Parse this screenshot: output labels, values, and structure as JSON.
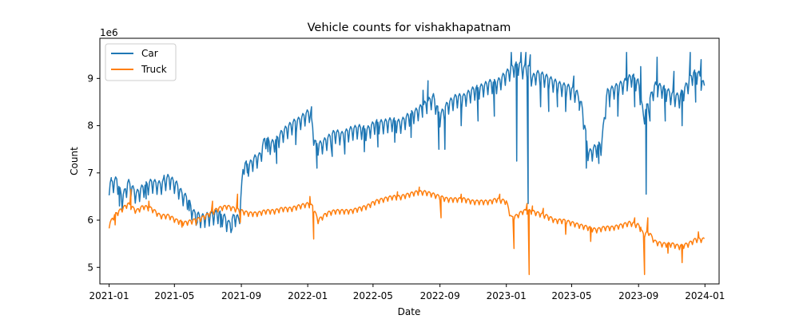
{
  "chart_data": {
    "type": "line",
    "title": "Vehicle counts for vishakhapatnam",
    "xlabel": "Date",
    "ylabel": "Count",
    "y_multiplier_label": "1e6",
    "y_multiplier": 1000000,
    "xlim": [
      "2020-12-15",
      "2024-01-27"
    ],
    "ylim": [
      4.65,
      9.85
    ],
    "grid": false,
    "legend_position": "top-left",
    "x_ticks": [
      {
        "date": "2021-01-01",
        "label": "2021-01"
      },
      {
        "date": "2021-05-01",
        "label": "2021-05"
      },
      {
        "date": "2021-09-01",
        "label": "2021-09"
      },
      {
        "date": "2022-01-01",
        "label": "2022-01"
      },
      {
        "date": "2022-05-01",
        "label": "2022-05"
      },
      {
        "date": "2022-09-01",
        "label": "2022-09"
      },
      {
        "date": "2023-01-01",
        "label": "2023-01"
      },
      {
        "date": "2023-05-01",
        "label": "2023-05"
      },
      {
        "date": "2023-09-01",
        "label": "2023-09"
      },
      {
        "date": "2024-01-01",
        "label": "2024-01"
      }
    ],
    "y_ticks": [
      {
        "value": 5,
        "label": "5"
      },
      {
        "value": 6,
        "label": "6"
      },
      {
        "value": 7,
        "label": "7"
      },
      {
        "value": 8,
        "label": "8"
      },
      {
        "value": 9,
        "label": "9"
      }
    ],
    "series": [
      {
        "name": "Car",
        "color": "#1f77b4",
        "points": [
          [
            "2021-01-01",
            6.75
          ],
          [
            "2021-01-15",
            6.85
          ],
          [
            "2021-01-25",
            6.45
          ],
          [
            "2021-02-05",
            6.8
          ],
          [
            "2021-02-20",
            6.55
          ],
          [
            "2021-03-05",
            6.7
          ],
          [
            "2021-03-20",
            6.8
          ],
          [
            "2021-04-05",
            6.75
          ],
          [
            "2021-04-20",
            6.9
          ],
          [
            "2021-05-05",
            6.75
          ],
          [
            "2021-05-15",
            6.55
          ],
          [
            "2021-05-25",
            6.45
          ],
          [
            "2021-06-05",
            6.15
          ],
          [
            "2021-06-20",
            6.05
          ],
          [
            "2021-07-05",
            6.1
          ],
          [
            "2021-07-20",
            6.15
          ],
          [
            "2021-08-01",
            6.05
          ],
          [
            "2021-08-10",
            5.9
          ],
          [
            "2021-08-20",
            6.1
          ],
          [
            "2021-08-28",
            6.0
          ],
          [
            "2021-09-05",
            7.2
          ],
          [
            "2021-09-15",
            7.15
          ],
          [
            "2021-09-25",
            7.3
          ],
          [
            "2021-10-05",
            7.35
          ],
          [
            "2021-10-15",
            7.75
          ],
          [
            "2021-10-25",
            7.6
          ],
          [
            "2021-11-05",
            7.7
          ],
          [
            "2021-11-15",
            7.85
          ],
          [
            "2021-11-25",
            7.95
          ],
          [
            "2021-12-05",
            8.05
          ],
          [
            "2021-12-15",
            8.1
          ],
          [
            "2021-12-25",
            8.2
          ],
          [
            "2022-01-05",
            8.3
          ],
          [
            "2022-01-15",
            7.6
          ],
          [
            "2022-01-25",
            7.6
          ],
          [
            "2022-02-05",
            7.7
          ],
          [
            "2022-02-20",
            7.85
          ],
          [
            "2022-03-05",
            7.8
          ],
          [
            "2022-03-20",
            7.9
          ],
          [
            "2022-04-05",
            7.95
          ],
          [
            "2022-04-20",
            7.9
          ],
          [
            "2022-05-05",
            8.05
          ],
          [
            "2022-05-20",
            8.05
          ],
          [
            "2022-06-05",
            8.1
          ],
          [
            "2022-06-20",
            8.05
          ],
          [
            "2022-07-05",
            8.2
          ],
          [
            "2022-07-20",
            8.3
          ],
          [
            "2022-08-05",
            8.45
          ],
          [
            "2022-08-20",
            8.6
          ],
          [
            "2022-09-01",
            8.2
          ],
          [
            "2022-09-15",
            8.45
          ],
          [
            "2022-10-01",
            8.6
          ],
          [
            "2022-10-15",
            8.6
          ],
          [
            "2022-11-01",
            8.75
          ],
          [
            "2022-11-15",
            8.8
          ],
          [
            "2022-12-01",
            8.9
          ],
          [
            "2022-12-15",
            8.9
          ],
          [
            "2023-01-01",
            9.1
          ],
          [
            "2023-01-15",
            9.25
          ],
          [
            "2023-01-25",
            9.3
          ],
          [
            "2023-02-01",
            9.2
          ],
          [
            "2023-02-10",
            9.25
          ],
          [
            "2023-02-18",
            9.0
          ],
          [
            "2023-02-25",
            9.1
          ],
          [
            "2023-03-10",
            9.05
          ],
          [
            "2023-03-25",
            8.95
          ],
          [
            "2023-04-10",
            8.85
          ],
          [
            "2023-04-25",
            8.8
          ],
          [
            "2023-05-10",
            8.7
          ],
          [
            "2023-05-20",
            8.4
          ],
          [
            "2023-06-01",
            7.4
          ],
          [
            "2023-06-15",
            7.55
          ],
          [
            "2023-06-25",
            7.6
          ],
          [
            "2023-07-05",
            8.7
          ],
          [
            "2023-07-20",
            8.8
          ],
          [
            "2023-08-05",
            8.9
          ],
          [
            "2023-08-20",
            9.05
          ],
          [
            "2023-09-01",
            8.9
          ],
          [
            "2023-09-10",
            8.2
          ],
          [
            "2023-09-20",
            8.5
          ],
          [
            "2023-10-01",
            8.85
          ],
          [
            "2023-10-15",
            8.8
          ],
          [
            "2023-11-01",
            8.65
          ],
          [
            "2023-11-15",
            8.6
          ],
          [
            "2023-12-01",
            8.9
          ],
          [
            "2023-12-10",
            9.1
          ],
          [
            "2023-12-20",
            9.1
          ],
          [
            "2024-01-01",
            8.8
          ]
        ],
        "spikes": [
          [
            "2021-01-05",
            6.9
          ],
          [
            "2021-01-20",
            6.3
          ],
          [
            "2021-03-10",
            6.45
          ],
          [
            "2021-04-12",
            6.95
          ],
          [
            "2021-05-28",
            6.2
          ],
          [
            "2021-06-12",
            5.95
          ],
          [
            "2021-07-25",
            5.85
          ],
          [
            "2021-08-15",
            5.82
          ],
          [
            "2021-09-12",
            7.0
          ],
          [
            "2021-10-20",
            7.45
          ],
          [
            "2021-11-05",
            7.2
          ],
          [
            "2021-12-10",
            7.6
          ],
          [
            "2022-01-08",
            8.4
          ],
          [
            "2022-01-18",
            7.1
          ],
          [
            "2022-02-15",
            7.35
          ],
          [
            "2022-03-10",
            7.4
          ],
          [
            "2022-04-15",
            7.45
          ],
          [
            "2022-05-10",
            7.55
          ],
          [
            "2022-06-10",
            7.65
          ],
          [
            "2022-07-10",
            7.75
          ],
          [
            "2022-08-01",
            8.75
          ],
          [
            "2022-08-10",
            8.95
          ],
          [
            "2022-08-30",
            7.5
          ],
          [
            "2022-09-10",
            7.5
          ],
          [
            "2022-10-10",
            8.0
          ],
          [
            "2022-11-10",
            8.1
          ],
          [
            "2022-12-10",
            8.2
          ],
          [
            "2023-01-10",
            9.55
          ],
          [
            "2023-01-20",
            7.25
          ],
          [
            "2023-01-28",
            9.55
          ],
          [
            "2023-02-06",
            9.55
          ],
          [
            "2023-02-10",
            6.35
          ],
          [
            "2023-02-14",
            9.5
          ],
          [
            "2023-03-05",
            8.4
          ],
          [
            "2023-03-20",
            8.3
          ],
          [
            "2023-04-05",
            8.4
          ],
          [
            "2023-04-20",
            8.3
          ],
          [
            "2023-05-05",
            9.05
          ],
          [
            "2023-05-15",
            8.45
          ],
          [
            "2023-05-28",
            7.1
          ],
          [
            "2023-06-20",
            7.2
          ],
          [
            "2023-07-10",
            8.4
          ],
          [
            "2023-07-25",
            8.2
          ],
          [
            "2023-08-10",
            9.55
          ],
          [
            "2023-08-25",
            8.4
          ],
          [
            "2023-09-05",
            9.25
          ],
          [
            "2023-09-15",
            6.55
          ],
          [
            "2023-09-22",
            8.1
          ],
          [
            "2023-10-05",
            9.45
          ],
          [
            "2023-10-20",
            8.1
          ],
          [
            "2023-11-05",
            9.15
          ],
          [
            "2023-11-20",
            8.0
          ],
          [
            "2023-12-05",
            9.55
          ],
          [
            "2023-12-15",
            8.5
          ],
          [
            "2023-12-25",
            9.4
          ]
        ],
        "weekly_swing": 0.45
      },
      {
        "name": "Truck",
        "color": "#ff7f0e",
        "points": [
          [
            "2021-01-01",
            5.9
          ],
          [
            "2021-01-10",
            6.1
          ],
          [
            "2021-01-20",
            6.2
          ],
          [
            "2021-02-05",
            6.35
          ],
          [
            "2021-02-20",
            6.2
          ],
          [
            "2021-03-05",
            6.3
          ],
          [
            "2021-03-20",
            6.25
          ],
          [
            "2021-04-05",
            6.1
          ],
          [
            "2021-04-20",
            6.1
          ],
          [
            "2021-05-05",
            6.0
          ],
          [
            "2021-05-20",
            5.95
          ],
          [
            "2021-06-05",
            6.0
          ],
          [
            "2021-06-20",
            6.05
          ],
          [
            "2021-07-05",
            6.15
          ],
          [
            "2021-07-20",
            6.25
          ],
          [
            "2021-08-05",
            6.3
          ],
          [
            "2021-08-20",
            6.25
          ],
          [
            "2021-09-01",
            6.2
          ],
          [
            "2021-09-15",
            6.15
          ],
          [
            "2021-10-01",
            6.15
          ],
          [
            "2021-10-15",
            6.2
          ],
          [
            "2021-11-01",
            6.2
          ],
          [
            "2021-11-15",
            6.25
          ],
          [
            "2021-12-01",
            6.25
          ],
          [
            "2021-12-15",
            6.3
          ],
          [
            "2022-01-01",
            6.35
          ],
          [
            "2022-01-10",
            6.3
          ],
          [
            "2022-01-20",
            6.0
          ],
          [
            "2022-02-05",
            6.15
          ],
          [
            "2022-02-20",
            6.2
          ],
          [
            "2022-03-05",
            6.2
          ],
          [
            "2022-03-20",
            6.2
          ],
          [
            "2022-04-05",
            6.25
          ],
          [
            "2022-04-20",
            6.3
          ],
          [
            "2022-05-05",
            6.4
          ],
          [
            "2022-05-20",
            6.45
          ],
          [
            "2022-06-05",
            6.5
          ],
          [
            "2022-06-20",
            6.5
          ],
          [
            "2022-07-05",
            6.55
          ],
          [
            "2022-07-20",
            6.6
          ],
          [
            "2022-08-05",
            6.6
          ],
          [
            "2022-08-20",
            6.55
          ],
          [
            "2022-09-01",
            6.5
          ],
          [
            "2022-09-15",
            6.45
          ],
          [
            "2022-10-01",
            6.45
          ],
          [
            "2022-10-15",
            6.45
          ],
          [
            "2022-11-01",
            6.4
          ],
          [
            "2022-11-15",
            6.4
          ],
          [
            "2022-12-01",
            6.4
          ],
          [
            "2022-12-15",
            6.45
          ],
          [
            "2023-01-01",
            6.4
          ],
          [
            "2023-01-10",
            6.05
          ],
          [
            "2023-01-20",
            6.1
          ],
          [
            "2023-02-01",
            6.2
          ],
          [
            "2023-02-15",
            6.2
          ],
          [
            "2023-03-01",
            6.15
          ],
          [
            "2023-03-15",
            6.1
          ],
          [
            "2023-04-01",
            6.0
          ],
          [
            "2023-04-15",
            6.0
          ],
          [
            "2023-05-01",
            5.95
          ],
          [
            "2023-05-15",
            5.9
          ],
          [
            "2023-06-01",
            5.85
          ],
          [
            "2023-06-15",
            5.8
          ],
          [
            "2023-07-01",
            5.85
          ],
          [
            "2023-07-15",
            5.85
          ],
          [
            "2023-08-01",
            5.9
          ],
          [
            "2023-08-15",
            5.95
          ],
          [
            "2023-09-01",
            5.9
          ],
          [
            "2023-09-10",
            5.7
          ],
          [
            "2023-09-20",
            5.75
          ],
          [
            "2023-10-01",
            5.55
          ],
          [
            "2023-10-15",
            5.5
          ],
          [
            "2023-11-01",
            5.5
          ],
          [
            "2023-11-15",
            5.45
          ],
          [
            "2023-12-01",
            5.5
          ],
          [
            "2023-12-15",
            5.6
          ],
          [
            "2024-01-01",
            5.6
          ]
        ],
        "spikes": [
          [
            "2021-01-12",
            5.9
          ],
          [
            "2021-02-10",
            6.65
          ],
          [
            "2021-03-15",
            6.4
          ],
          [
            "2021-05-15",
            5.85
          ],
          [
            "2021-06-10",
            5.9
          ],
          [
            "2021-07-10",
            6.4
          ],
          [
            "2021-08-25",
            6.55
          ],
          [
            "2021-08-30",
            5.95
          ],
          [
            "2022-01-05",
            6.5
          ],
          [
            "2022-01-12",
            5.6
          ],
          [
            "2022-06-15",
            6.6
          ],
          [
            "2022-07-25",
            6.7
          ],
          [
            "2022-09-03",
            6.05
          ],
          [
            "2022-10-10",
            6.55
          ],
          [
            "2022-12-20",
            6.55
          ],
          [
            "2023-01-15",
            5.4
          ],
          [
            "2023-02-08",
            6.35
          ],
          [
            "2023-02-12",
            4.85
          ],
          [
            "2023-02-18",
            6.3
          ],
          [
            "2023-03-10",
            6.25
          ],
          [
            "2023-04-20",
            5.7
          ],
          [
            "2023-06-05",
            5.55
          ],
          [
            "2023-08-25",
            6.05
          ],
          [
            "2023-09-05",
            5.85
          ],
          [
            "2023-09-12",
            4.85
          ],
          [
            "2023-09-18",
            6.05
          ],
          [
            "2023-10-25",
            5.3
          ],
          [
            "2023-11-20",
            5.1
          ],
          [
            "2023-12-20",
            5.75
          ]
        ],
        "weekly_swing": 0.15
      }
    ]
  }
}
